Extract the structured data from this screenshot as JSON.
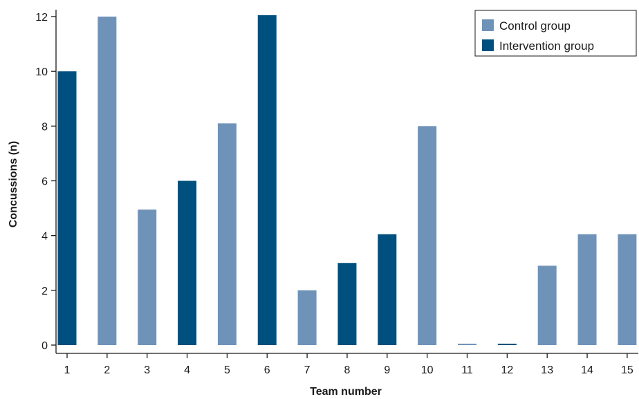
{
  "chart_data": {
    "type": "bar",
    "categories": [
      "1",
      "2",
      "3",
      "4",
      "5",
      "6",
      "7",
      "8",
      "9",
      "10",
      "11",
      "12",
      "13",
      "14",
      "15"
    ],
    "values": [
      10,
      12,
      4.95,
      6,
      8.1,
      12.05,
      2,
      3,
      4.05,
      8,
      0.05,
      0.05,
      2.9,
      4.05,
      4.05
    ],
    "groups": [
      "Intervention group",
      "Control group",
      "Control group",
      "Intervention group",
      "Control group",
      "Intervention group",
      "Control group",
      "Intervention group",
      "Intervention group",
      "Control group",
      "Control group",
      "Intervention group",
      "Control group",
      "Control group",
      "Control group"
    ],
    "series": [
      {
        "name": "Control group",
        "color": "#6f93b8"
      },
      {
        "name": "Intervention group",
        "color": "#00507f"
      }
    ],
    "xlabel": "Team number",
    "ylabel": "Concussions (n)",
    "ylim": [
      0,
      12
    ],
    "yticks": [
      0,
      2,
      4,
      6,
      8,
      10,
      12
    ],
    "grid": false,
    "legend_position": "top-right"
  }
}
